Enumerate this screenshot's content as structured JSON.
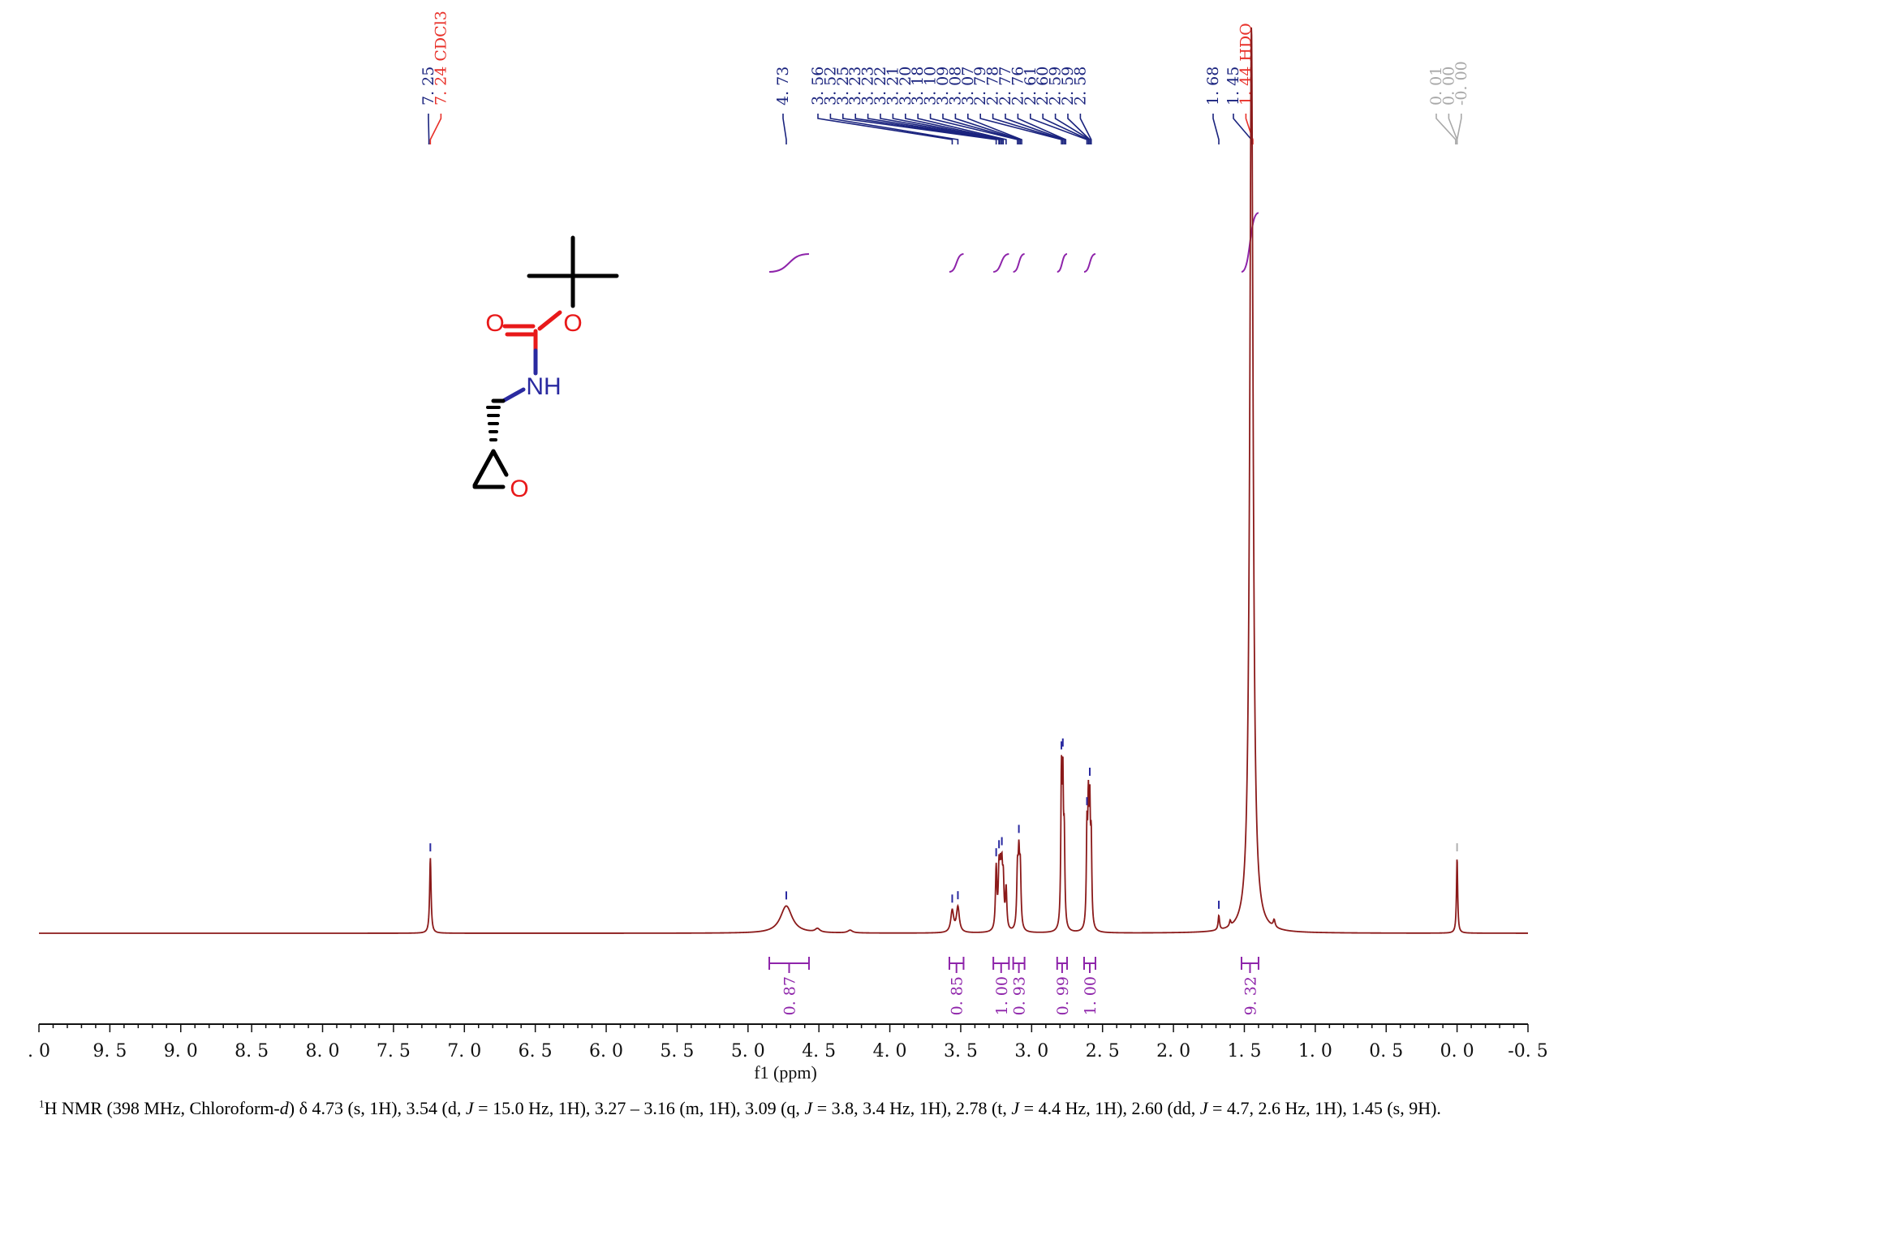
{
  "chart_data": {
    "type": "line",
    "xlabel": "f1 (ppm)",
    "xlim": [
      10.0,
      -0.5
    ],
    "x_ticks": [
      {
        "v": 10.0,
        "label": ". 0"
      },
      {
        "v": 9.5,
        "label": "9. 5"
      },
      {
        "v": 9.0,
        "label": "9. 0"
      },
      {
        "v": 8.5,
        "label": "8. 5"
      },
      {
        "v": 8.0,
        "label": "8. 0"
      },
      {
        "v": 7.5,
        "label": "7. 5"
      },
      {
        "v": 7.0,
        "label": "7. 0"
      },
      {
        "v": 6.5,
        "label": "6. 5"
      },
      {
        "v": 6.0,
        "label": "6. 0"
      },
      {
        "v": 5.5,
        "label": "5. 5"
      },
      {
        "v": 5.0,
        "label": "5. 0"
      },
      {
        "v": 4.5,
        "label": "4. 5"
      },
      {
        "v": 4.0,
        "label": "4. 0"
      },
      {
        "v": 3.5,
        "label": "3. 5"
      },
      {
        "v": 3.0,
        "label": "3. 0"
      },
      {
        "v": 2.5,
        "label": "2. 5"
      },
      {
        "v": 2.0,
        "label": "2. 0"
      },
      {
        "v": 1.5,
        "label": "1. 5"
      },
      {
        "v": 1.0,
        "label": "1. 0"
      },
      {
        "v": 0.5,
        "label": "0. 5"
      },
      {
        "v": 0.0,
        "label": "0. 0"
      },
      {
        "v": -0.5,
        "label": "-0. 5"
      }
    ],
    "series": [
      {
        "color": "#8b1a1a",
        "peaks": [
          {
            "ppm": 7.24,
            "height": 0.083,
            "width": 0.006
          },
          {
            "ppm": 4.73,
            "height": 0.03,
            "width": 0.05
          },
          {
            "ppm": 4.51,
            "height": 0.004,
            "width": 0.02
          },
          {
            "ppm": 4.28,
            "height": 0.003,
            "width": 0.02
          },
          {
            "ppm": 3.56,
            "height": 0.024,
            "width": 0.012
          },
          {
            "ppm": 3.52,
            "height": 0.028,
            "width": 0.012
          },
          {
            "ppm": 3.25,
            "height": 0.068,
            "width": 0.006
          },
          {
            "ppm": 3.23,
            "height": 0.06,
            "width": 0.006
          },
          {
            "ppm": 3.22,
            "height": 0.05,
            "width": 0.006
          },
          {
            "ppm": 3.21,
            "height": 0.055,
            "width": 0.006
          },
          {
            "ppm": 3.2,
            "height": 0.048,
            "width": 0.006
          },
          {
            "ppm": 3.18,
            "height": 0.045,
            "width": 0.006
          },
          {
            "ppm": 3.1,
            "height": 0.06,
            "width": 0.006
          },
          {
            "ppm": 3.09,
            "height": 0.07,
            "width": 0.006
          },
          {
            "ppm": 3.08,
            "height": 0.062,
            "width": 0.006
          },
          {
            "ppm": 2.79,
            "height": 0.16,
            "width": 0.005
          },
          {
            "ppm": 2.78,
            "height": 0.148,
            "width": 0.005
          },
          {
            "ppm": 2.77,
            "height": 0.09,
            "width": 0.005
          },
          {
            "ppm": 2.61,
            "height": 0.1,
            "width": 0.005
          },
          {
            "ppm": 2.6,
            "height": 0.12,
            "width": 0.005
          },
          {
            "ppm": 2.59,
            "height": 0.118,
            "width": 0.005
          },
          {
            "ppm": 2.58,
            "height": 0.09,
            "width": 0.005
          },
          {
            "ppm": 1.68,
            "height": 0.016,
            "width": 0.006
          },
          {
            "ppm": 1.6,
            "height": 0.006,
            "width": 0.006
          },
          {
            "ppm": 1.45,
            "height": 1.0,
            "width": 0.014
          },
          {
            "ppm": 1.29,
            "height": 0.008,
            "width": 0.008
          },
          {
            "ppm": 0.0,
            "height": 0.083,
            "width": 0.005
          }
        ]
      }
    ],
    "peak_labels": [
      {
        "group": "a",
        "ppm": 7.25,
        "text": "7. 25",
        "color": "#1a237e"
      },
      {
        "group": "a",
        "ppm": 7.24,
        "text": "7. 24 CDCl3",
        "color": "#e8312a"
      },
      {
        "group": "b",
        "ppm": 4.73,
        "text": "4. 73",
        "color": "#1a237e"
      },
      {
        "group": "c",
        "ppm": 3.56,
        "text": "3. 56",
        "color": "#1a237e"
      },
      {
        "group": "c",
        "ppm": 3.52,
        "text": "3. 52",
        "color": "#1a237e"
      },
      {
        "group": "c",
        "ppm": 3.25,
        "text": "3. 25",
        "color": "#1a237e"
      },
      {
        "group": "c",
        "ppm": 3.23,
        "text": "3. 23",
        "color": "#1a237e"
      },
      {
        "group": "c",
        "ppm": 3.23,
        "text": "3. 23",
        "color": "#1a237e"
      },
      {
        "group": "c",
        "ppm": 3.22,
        "text": "3. 22",
        "color": "#1a237e"
      },
      {
        "group": "c",
        "ppm": 3.21,
        "text": "3. 21",
        "color": "#1a237e"
      },
      {
        "group": "c",
        "ppm": 3.2,
        "text": "3. 20",
        "color": "#1a237e"
      },
      {
        "group": "c",
        "ppm": 3.18,
        "text": "3. 18",
        "color": "#1a237e"
      },
      {
        "group": "c",
        "ppm": 3.1,
        "text": "3. 10",
        "color": "#1a237e"
      },
      {
        "group": "c",
        "ppm": 3.09,
        "text": "3. 09",
        "color": "#1a237e"
      },
      {
        "group": "c",
        "ppm": 3.08,
        "text": "3. 08",
        "color": "#1a237e"
      },
      {
        "group": "c",
        "ppm": 3.07,
        "text": "3. 07",
        "color": "#1a237e"
      },
      {
        "group": "c",
        "ppm": 2.79,
        "text": "2. 79",
        "color": "#1a237e"
      },
      {
        "group": "c",
        "ppm": 2.78,
        "text": "2. 78",
        "color": "#1a237e"
      },
      {
        "group": "c",
        "ppm": 2.77,
        "text": "2. 77",
        "color": "#1a237e"
      },
      {
        "group": "c",
        "ppm": 2.76,
        "text": "2. 76",
        "color": "#1a237e"
      },
      {
        "group": "c",
        "ppm": 2.61,
        "text": "2. 61",
        "color": "#1a237e"
      },
      {
        "group": "c",
        "ppm": 2.6,
        "text": "2. 60",
        "color": "#1a237e"
      },
      {
        "group": "c",
        "ppm": 2.59,
        "text": "2. 59",
        "color": "#1a237e"
      },
      {
        "group": "c",
        "ppm": 2.59,
        "text": "2. 59",
        "color": "#1a237e"
      },
      {
        "group": "c",
        "ppm": 2.58,
        "text": "2. 58",
        "color": "#1a237e"
      },
      {
        "group": "d",
        "ppm": 1.68,
        "text": "1. 68",
        "color": "#1a237e"
      },
      {
        "group": "e",
        "ppm": 1.45,
        "text": "1. 45",
        "color": "#1a237e"
      },
      {
        "group": "e",
        "ppm": 1.44,
        "text": "1. 44 HDO",
        "color": "#e8312a"
      },
      {
        "group": "f",
        "ppm": 0.01,
        "text": "0. 01",
        "color": "#a8a8a8"
      },
      {
        "group": "f",
        "ppm": 0.0,
        "text": "0. 00",
        "color": "#a8a8a8"
      },
      {
        "group": "f",
        "ppm": 0.0,
        "text": "-0. 00",
        "color": "#a8a8a8"
      }
    ],
    "integrals": [
      {
        "from": 4.85,
        "to": 4.57,
        "value": "0. 87"
      },
      {
        "from": 3.58,
        "to": 3.48,
        "value": "0. 85"
      },
      {
        "from": 3.27,
        "to": 3.16,
        "value": "1. 00"
      },
      {
        "from": 3.13,
        "to": 3.05,
        "value": "0. 93"
      },
      {
        "from": 2.82,
        "to": 2.75,
        "value": "0. 99"
      },
      {
        "from": 2.63,
        "to": 2.55,
        "value": "1. 00"
      },
      {
        "from": 1.52,
        "to": 1.4,
        "value": "9. 32"
      }
    ],
    "integral_color": "#8e24aa"
  },
  "structure": {
    "atoms": {
      "o1": "O",
      "o2": "O",
      "nh": "NH",
      "o3": "O"
    }
  },
  "caption": {
    "sup": "1",
    "a": "H NMR (398 MHz, Chloroform-",
    "d": "d",
    "b": ") δ 4.73 (s, 1H), 3.54 (d, ",
    "j1": "J",
    "c": " = 15.0 Hz, 1H), 3.27 – 3.16 (m, 1H), 3.09 (q, ",
    "j2": "J",
    "e": " = 3.8, 3.4 Hz, 1H), 2.78 (t, ",
    "j3": "J",
    "f": " = 4.4 Hz, 1H), 2.60 (dd, ",
    "j4": "J",
    "g": " = 4.7, 2.6 Hz, 1H), 1.45 (s, 9H)."
  }
}
